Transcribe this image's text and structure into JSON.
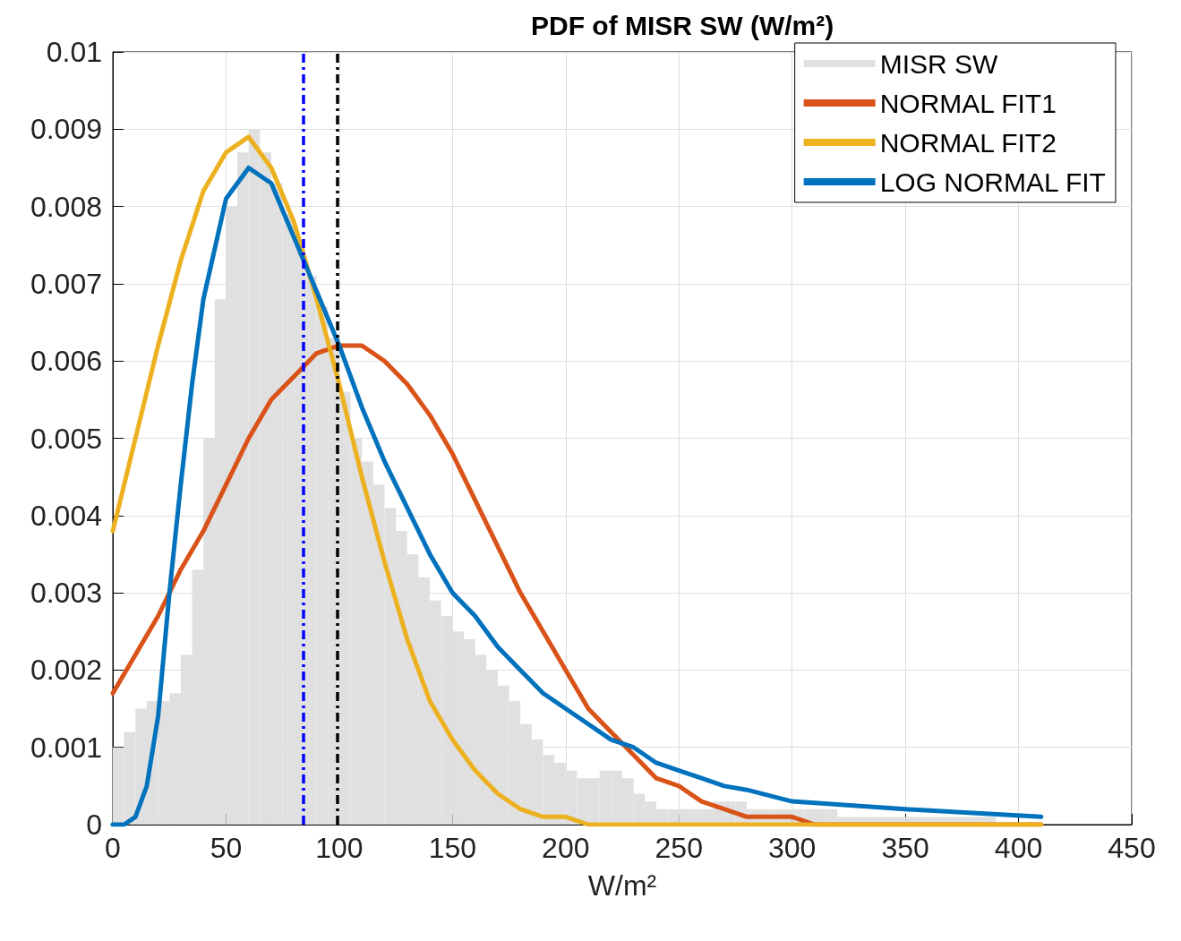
{
  "chart_data": {
    "type": "histogram",
    "title": "PDF of MISR SW (W/m²)",
    "xlabel": "W/m²",
    "xlim": [
      0,
      450
    ],
    "xticks": [
      0,
      50,
      100,
      150,
      200,
      250,
      300,
      350,
      400,
      450
    ],
    "ylim": [
      0,
      0.01
    ],
    "yticks": [
      0,
      0.001,
      0.002,
      0.003,
      0.004,
      0.005,
      0.006,
      0.007,
      0.008,
      0.009,
      0.01
    ],
    "grid": true,
    "legend": "top right",
    "bins": [
      0,
      5,
      10,
      15,
      20,
      25,
      30,
      35,
      40,
      45,
      50,
      55,
      60,
      65,
      70,
      75,
      80,
      85,
      90,
      95,
      100,
      105,
      110,
      115,
      120,
      125,
      130,
      135,
      140,
      145,
      150,
      155,
      160,
      165,
      170,
      175,
      180,
      185,
      190,
      195,
      200,
      205,
      210,
      215,
      220,
      225,
      230,
      235,
      240,
      245,
      250,
      255,
      260,
      265,
      270,
      275,
      280,
      285,
      290,
      295,
      300,
      305,
      310,
      315,
      320,
      325,
      330,
      335,
      340,
      345,
      350,
      355,
      360,
      365,
      370,
      375,
      380,
      385,
      390,
      395,
      400,
      405,
      410
    ],
    "series": [
      {
        "name": "MISR SW",
        "color": "#e0e0e0",
        "values": [
          0.001,
          0.0012,
          0.0015,
          0.0016,
          0.0016,
          0.0017,
          0.0022,
          0.0033,
          0.005,
          0.0068,
          0.008,
          0.0087,
          0.009,
          0.0087,
          0.0083,
          0.0079,
          0.0075,
          0.0071,
          0.0067,
          0.0063,
          0.0056,
          0.005,
          0.0047,
          0.0044,
          0.0041,
          0.0038,
          0.0035,
          0.0032,
          0.0029,
          0.0027,
          0.0025,
          0.0024,
          0.0022,
          0.002,
          0.0018,
          0.0016,
          0.0013,
          0.0011,
          0.0009,
          0.0008,
          0.0007,
          0.0006,
          0.0006,
          0.0007,
          0.0007,
          0.0006,
          0.0004,
          0.0003,
          0.0002,
          0.0002,
          0.0002,
          0.0002,
          0.0002,
          0.0003,
          0.0003,
          0.0003,
          0.0002,
          0.0002,
          0.0002,
          0.0002,
          0.0002,
          0.0002,
          0.0002,
          0.0002,
          0.0001,
          0.0001,
          0.0001,
          0.0001,
          0.0001,
          0.0001,
          0.0001,
          0.0001,
          0.0001,
          0.0001,
          0.0001,
          0.0001,
          0.0001,
          0.0001,
          0,
          0,
          0,
          0
        ]
      },
      {
        "name": "NORMAL FIT1",
        "type": "line",
        "color": "#d95319",
        "x": [
          0,
          10,
          20,
          30,
          40,
          50,
          60,
          70,
          80,
          90,
          100,
          110,
          120,
          130,
          140,
          150,
          160,
          170,
          180,
          190,
          200,
          210,
          220,
          230,
          240,
          250,
          260,
          270,
          280,
          290,
          300,
          310,
          320,
          330,
          340,
          350,
          360,
          370,
          380,
          390,
          400,
          410
        ],
        "values": [
          0.0017,
          0.0022,
          0.0027,
          0.0033,
          0.0038,
          0.0044,
          0.005,
          0.0055,
          0.0058,
          0.0061,
          0.0062,
          0.0062,
          0.006,
          0.0057,
          0.0053,
          0.0048,
          0.0042,
          0.0036,
          0.003,
          0.0025,
          0.002,
          0.0015,
          0.0012,
          0.0009,
          0.0006,
          0.0005,
          0.0003,
          0.0002,
          0.0001,
          0.0001,
          0.0001,
          0,
          0,
          0,
          0,
          0,
          0,
          0,
          0,
          0,
          0,
          0
        ]
      },
      {
        "name": "NORMAL FIT2",
        "type": "line",
        "color": "#edb120",
        "x": [
          0,
          10,
          20,
          30,
          40,
          50,
          60,
          70,
          80,
          90,
          100,
          110,
          120,
          130,
          140,
          150,
          160,
          170,
          180,
          190,
          200,
          210,
          220,
          230,
          240,
          250,
          260,
          270,
          280,
          290,
          300,
          310,
          320,
          330,
          340,
          350,
          360,
          370,
          380,
          390,
          400,
          410
        ],
        "values": [
          0.0038,
          0.005,
          0.0062,
          0.0073,
          0.0082,
          0.0087,
          0.0089,
          0.0085,
          0.0078,
          0.0068,
          0.0057,
          0.0045,
          0.0034,
          0.0024,
          0.0016,
          0.0011,
          0.0007,
          0.0004,
          0.0002,
          0.0001,
          0.0001,
          0,
          0,
          0,
          0,
          0,
          0,
          0,
          0,
          0,
          0,
          0,
          0,
          0,
          0,
          0,
          0,
          0,
          0,
          0,
          0,
          0
        ]
      },
      {
        "name": "LOG NORMAL FIT",
        "type": "line",
        "color": "#0072bd",
        "x": [
          0,
          5,
          10,
          15,
          20,
          25,
          30,
          35,
          40,
          50,
          60,
          70,
          80,
          90,
          100,
          110,
          120,
          130,
          140,
          150,
          160,
          170,
          180,
          190,
          200,
          210,
          220,
          230,
          240,
          250,
          260,
          270,
          280,
          300,
          350,
          410
        ],
        "values": [
          0,
          0,
          0.0001,
          0.0005,
          0.0014,
          0.003,
          0.0044,
          0.0057,
          0.0068,
          0.0081,
          0.0085,
          0.0083,
          0.0076,
          0.0069,
          0.0062,
          0.0054,
          0.0047,
          0.0041,
          0.0035,
          0.003,
          0.0027,
          0.0023,
          0.002,
          0.0017,
          0.0015,
          0.0013,
          0.0011,
          0.001,
          0.0008,
          0.0007,
          0.0006,
          0.0005,
          0.00045,
          0.0003,
          0.0002,
          0.0001
        ]
      }
    ],
    "ref_lines": [
      {
        "axis": "x",
        "value": 84,
        "color": "#0000ff",
        "line_style": "dashed"
      },
      {
        "axis": "x",
        "value": 99,
        "color": "#000000",
        "line_style": "dashed"
      }
    ]
  }
}
